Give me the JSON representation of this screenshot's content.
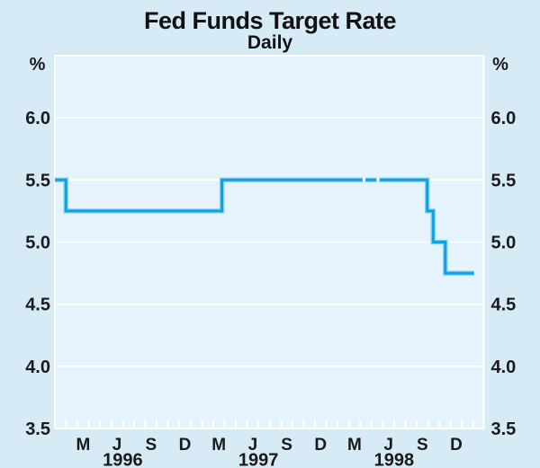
{
  "chart_data": {
    "type": "line",
    "title": "Fed Funds Target Rate",
    "subtitle": "Daily",
    "unit_left": "%",
    "unit_right": "%",
    "ylim": [
      3.5,
      6.5
    ],
    "yticks": [
      3.5,
      4.0,
      4.5,
      5.0,
      5.5,
      6.0
    ],
    "ytick_labels": [
      "3.5",
      "4.0",
      "4.5",
      "5.0",
      "5.5",
      "6.0"
    ],
    "grid": true,
    "x_start": "1996-01-01",
    "x_end": "1999-02-27",
    "x_axis": {
      "month_labels": [
        "M",
        "J",
        "S",
        "D"
      ],
      "labeled_months": [
        "March",
        "June",
        "September",
        "December"
      ],
      "years": [
        "1996",
        "1997",
        "1998"
      ],
      "tick_interval_months": 1
    },
    "series": [
      {
        "name": "Fed funds target rate (% p.a.)",
        "style": "step",
        "color": "#0da2e0",
        "halo_color": "#8ed2f2",
        "points": [
          {
            "date": "1996-01-01",
            "rate": 5.5
          },
          {
            "date": "1996-01-31",
            "rate": 5.25
          },
          {
            "date": "1997-03-25",
            "rate": 5.5
          },
          {
            "date": "1998-09-29",
            "rate": 5.25
          },
          {
            "date": "1998-10-15",
            "rate": 5.0
          },
          {
            "date": "1998-11-17",
            "rate": 4.75
          }
        ],
        "end_date": "1999-02-03",
        "gaps": [
          {
            "from": "1998-04-07",
            "to": "1998-04-15"
          },
          {
            "from": "1998-05-15",
            "to": "1998-05-23"
          }
        ]
      }
    ],
    "colors": {
      "background_outer": "#d7ebf7",
      "background_inner": "#e5f4fc",
      "gridline": "#ffffff",
      "text": "#1a1a1a",
      "line": "#0da2e0"
    }
  }
}
